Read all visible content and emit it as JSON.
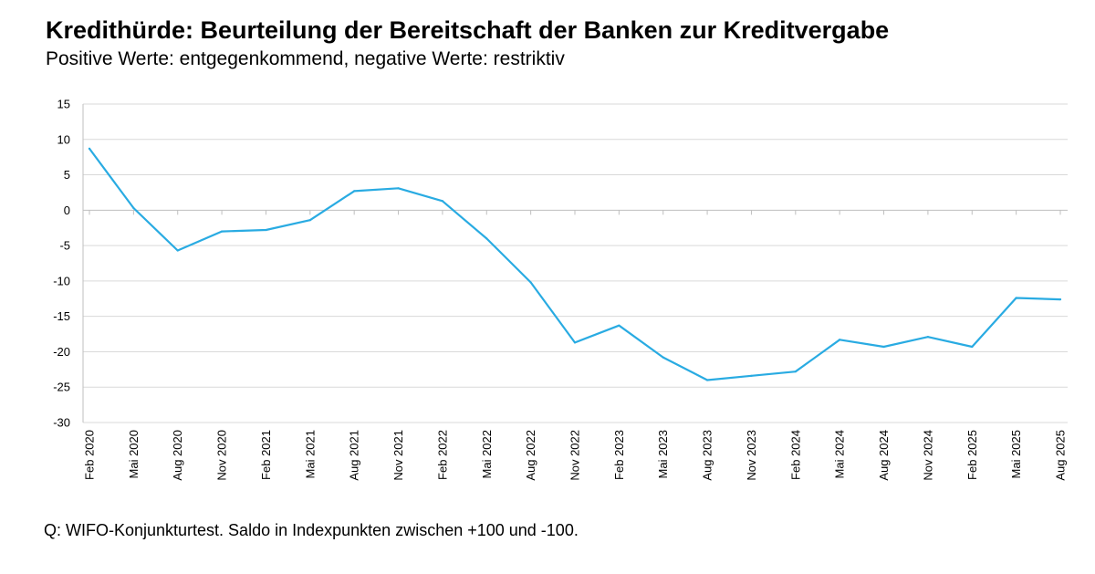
{
  "title": "Kredithürde: Beurteilung der Bereitschaft der Banken zur Kreditvergabe",
  "subtitle": "Positive Werte: entgegenkommend, negative Werte: restriktiv",
  "source": "Q: WIFO-Konjunkturtest. Saldo in Indexpunkten zwischen +100 und -100.",
  "colors": {
    "line": "#29abe2",
    "grid": "#d9d9d9",
    "axis": "#bfbfbf"
  },
  "chart_data": {
    "type": "line",
    "title": "",
    "xlabel": "",
    "ylabel": "",
    "ylim": [
      -30,
      15
    ],
    "yticks": [
      15,
      10,
      5,
      0,
      -5,
      -10,
      -15,
      -20,
      -25,
      -30
    ],
    "grid": true,
    "categories": [
      "Feb 2020",
      "Mai 2020",
      "Aug 2020",
      "Nov 2020",
      "Feb 2021",
      "Mai 2021",
      "Aug 2021",
      "Nov 2021",
      "Feb 2022",
      "Mai 2022",
      "Aug 2022",
      "Nov 2022",
      "Feb 2023",
      "Mai 2023",
      "Aug 2023",
      "Nov 2023",
      "Feb 2024",
      "Mai 2024",
      "Aug 2024",
      "Nov 2024",
      "Feb 2025",
      "Mai 2025",
      "Aug 2025"
    ],
    "series": [
      {
        "values": [
          8.7,
          0.3,
          -5.7,
          -3.0,
          -2.8,
          -1.4,
          2.7,
          3.1,
          1.3,
          -4.0,
          -10.2,
          -18.7,
          -16.3,
          -20.8,
          -24.0,
          -23.4,
          -22.8,
          -18.3,
          -19.3,
          -17.9,
          -19.3,
          -12.4,
          -12.6
        ]
      }
    ]
  }
}
